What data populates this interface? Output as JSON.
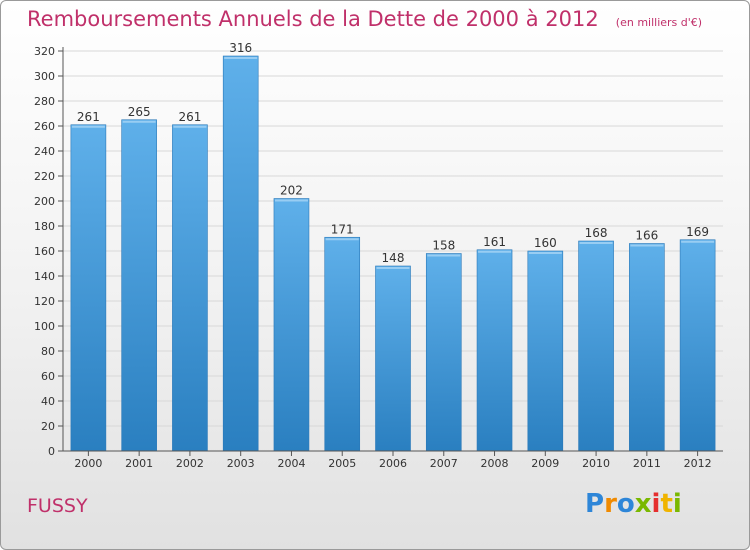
{
  "title": "Remboursements Annuels de la Dette de 2000 à 2012",
  "unit": "(en milliers d'€)",
  "commune": "FUSSY",
  "logo_text": "Proxiti",
  "colors": {
    "title": "#c0306a",
    "bar_top": "#5fb0ea",
    "bar_bottom": "#2a7fc0",
    "axis": "#555555",
    "grid": "#d8d8d8"
  },
  "chart_data": {
    "type": "bar",
    "categories": [
      "2000",
      "2001",
      "2002",
      "2003",
      "2004",
      "2005",
      "2006",
      "2007",
      "2008",
      "2009",
      "2010",
      "2011",
      "2012"
    ],
    "values": [
      261,
      265,
      261,
      316,
      202,
      171,
      148,
      158,
      161,
      160,
      168,
      166,
      169
    ],
    "ylim": [
      0,
      320
    ],
    "yticks": [
      0,
      20,
      40,
      60,
      80,
      100,
      120,
      140,
      160,
      180,
      200,
      220,
      240,
      260,
      280,
      300,
      320
    ],
    "grid": true
  }
}
